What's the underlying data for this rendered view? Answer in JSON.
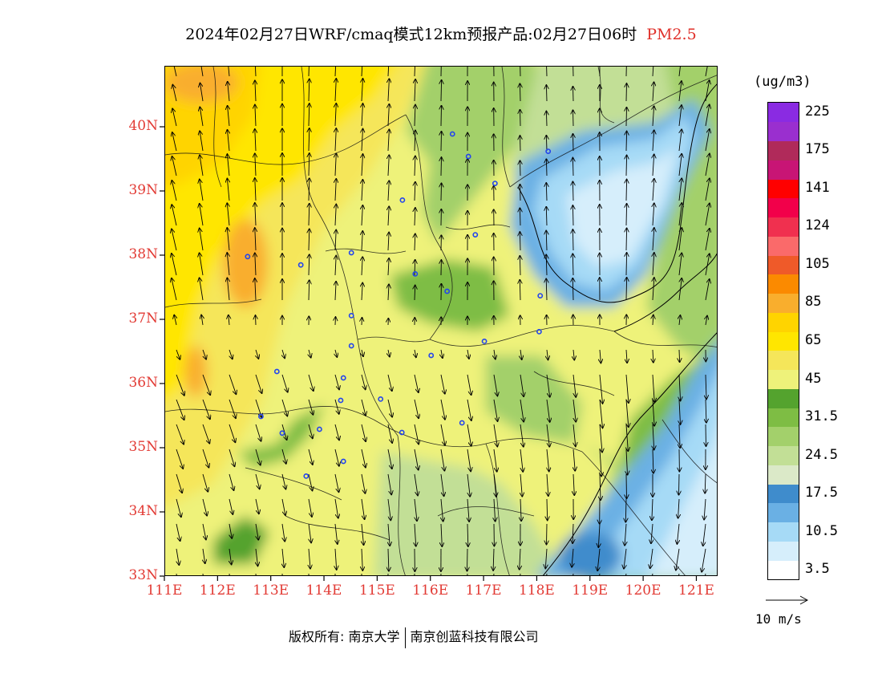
{
  "title": {
    "main": "2024年02月27日WRF/cmaq模式12km预报产品:02月27日06时",
    "pollutant": "PM2.5"
  },
  "map": {
    "lon_ticks": [
      "111E",
      "112E",
      "113E",
      "114E",
      "115E",
      "116E",
      "117E",
      "118E",
      "119E",
      "120E",
      "121E"
    ],
    "lat_ticks": [
      "33N",
      "34N",
      "35N",
      "36N",
      "37N",
      "38N",
      "39N",
      "40N"
    ],
    "lon_range": [
      111,
      121.4
    ],
    "lat_range": [
      33,
      40.95
    ],
    "city_marker_color": "#2244ee",
    "cities": [
      {
        "lon": 116.4,
        "lat": 39.9
      },
      {
        "lon": 116.7,
        "lat": 39.55
      },
      {
        "lon": 117.2,
        "lat": 39.13
      },
      {
        "lon": 118.2,
        "lat": 39.63
      },
      {
        "lon": 115.46,
        "lat": 38.87
      },
      {
        "lon": 116.83,
        "lat": 38.33
      },
      {
        "lon": 112.55,
        "lat": 37.99
      },
      {
        "lon": 113.55,
        "lat": 37.86
      },
      {
        "lon": 114.5,
        "lat": 38.05
      },
      {
        "lon": 115.7,
        "lat": 37.72
      },
      {
        "lon": 116.3,
        "lat": 37.45
      },
      {
        "lon": 118.05,
        "lat": 37.38
      },
      {
        "lon": 114.5,
        "lat": 37.07
      },
      {
        "lon": 114.5,
        "lat": 36.6
      },
      {
        "lon": 117.0,
        "lat": 36.67
      },
      {
        "lon": 118.03,
        "lat": 36.82
      },
      {
        "lon": 116.0,
        "lat": 36.45
      },
      {
        "lon": 113.1,
        "lat": 36.2
      },
      {
        "lon": 114.35,
        "lat": 36.1
      },
      {
        "lon": 114.3,
        "lat": 35.75
      },
      {
        "lon": 115.05,
        "lat": 35.77
      },
      {
        "lon": 112.8,
        "lat": 35.5
      },
      {
        "lon": 113.9,
        "lat": 35.3
      },
      {
        "lon": 113.2,
        "lat": 35.24
      },
      {
        "lon": 115.45,
        "lat": 35.25
      },
      {
        "lon": 116.58,
        "lat": 35.4
      },
      {
        "lon": 114.35,
        "lat": 34.8
      },
      {
        "lon": 113.65,
        "lat": 34.57
      }
    ]
  },
  "legend": {
    "unit": "(ug/m3)",
    "levels": [
      {
        "color": "#ffffff",
        "label": "3.5"
      },
      {
        "color": "#d6eefb",
        "label": ""
      },
      {
        "color": "#a6daf6",
        "label": "10.5"
      },
      {
        "color": "#6ab0e4",
        "label": ""
      },
      {
        "color": "#3f8ccc",
        "label": "17.5"
      },
      {
        "color": "#dbe9c8",
        "label": ""
      },
      {
        "color": "#c2df96",
        "label": "24.5"
      },
      {
        "color": "#a3d06b",
        "label": ""
      },
      {
        "color": "#7ebd44",
        "label": "31.5"
      },
      {
        "color": "#54a32e",
        "label": ""
      },
      {
        "color": "#eef27a",
        "label": "45"
      },
      {
        "color": "#f5e65a",
        "label": ""
      },
      {
        "color": "#ffe600",
        "label": "65"
      },
      {
        "color": "#ffd400",
        "label": ""
      },
      {
        "color": "#f9ae2d",
        "label": "85"
      },
      {
        "color": "#fb8a00",
        "label": ""
      },
      {
        "color": "#ef5a29",
        "label": "105"
      },
      {
        "color": "#fa6a6a",
        "label": ""
      },
      {
        "color": "#f0304f",
        "label": "124"
      },
      {
        "color": "#f2004a",
        "label": ""
      },
      {
        "color": "#ff0000",
        "label": "141"
      },
      {
        "color": "#c81575",
        "label": ""
      },
      {
        "color": "#b02a5a",
        "label": "175"
      },
      {
        "color": "#9a2fcf",
        "label": ""
      },
      {
        "color": "#8a2be2",
        "label": "225"
      }
    ]
  },
  "wind_reference": {
    "label": "10 m/s"
  },
  "copyright": {
    "prefix": "版权所有:",
    "org1": "南京大学",
    "org2": "南京创蓝科技有限公司"
  }
}
